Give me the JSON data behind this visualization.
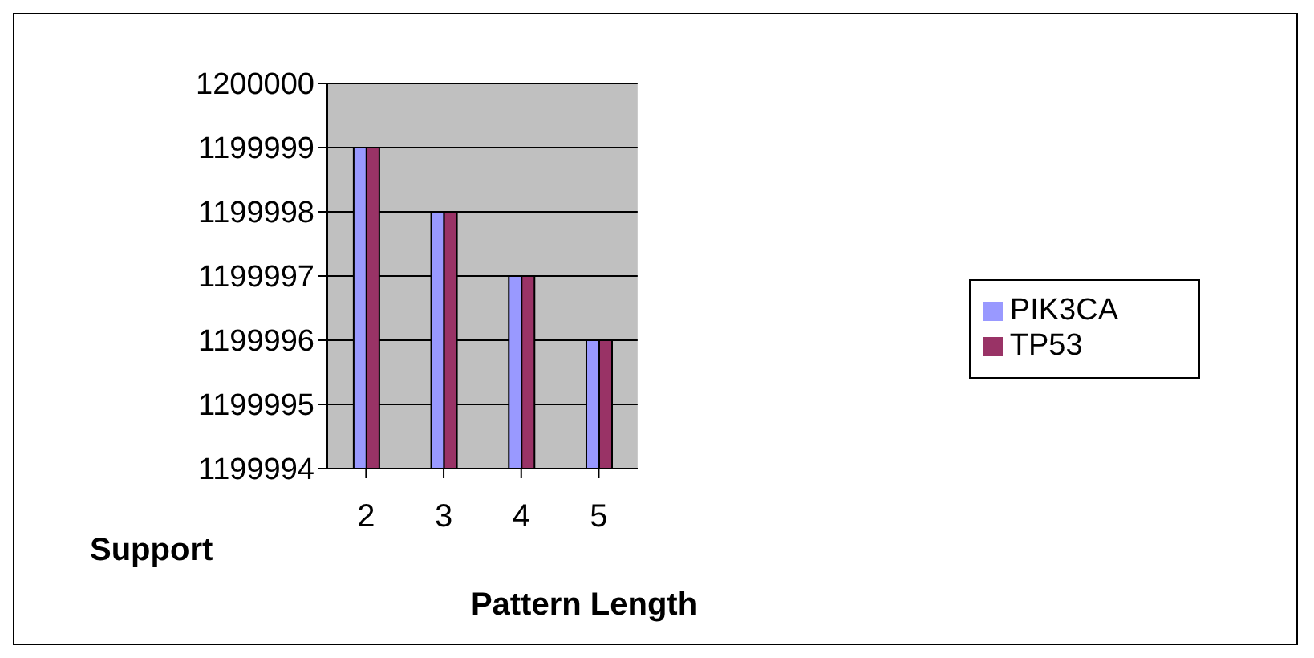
{
  "chart_data": {
    "type": "bar",
    "xlabel": "Pattern Length",
    "ylabel": "Support",
    "categories": [
      "2",
      "3",
      "4",
      "5"
    ],
    "series": [
      {
        "name": "PIK3CA",
        "color": "#9999ff",
        "values": [
          1199999,
          1199998,
          1199997,
          1199996
        ]
      },
      {
        "name": "TP53",
        "color": "#993366",
        "values": [
          1199999,
          1199998,
          1199997,
          1199996
        ]
      }
    ],
    "ylim": [
      1199994,
      1200000
    ],
    "yticks": [
      1199994,
      1199995,
      1199996,
      1199997,
      1199998,
      1199999,
      1200000
    ],
    "grid": "y",
    "legend": "right"
  }
}
